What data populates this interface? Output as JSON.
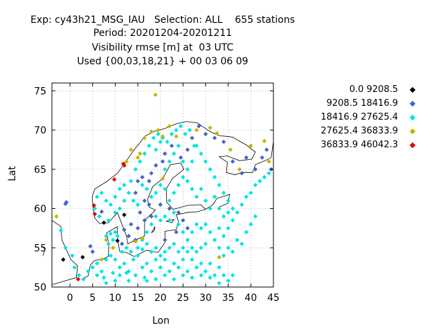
{
  "title": {
    "lines": [
      "Exp: cy43h21_MSG_IAU   Selection: ALL    655 stations",
      "Period: 20201204-20201211",
      "Visibility rmse [m] at  03 UTC",
      "Used {00,03,18,21} + 00 03 06 09"
    ]
  },
  "colors": {
    "bin0": "#000000",
    "bin1": "#4466cc",
    "bin2": "#00e5e5",
    "bin3": "#c8b400",
    "bin4": "#e60000",
    "grid": "#999999",
    "coast": "#000000"
  },
  "chart_data": {
    "type": "scatter",
    "title": "Exp: cy43h21_MSG_IAU   Selection: ALL    655 stations",
    "xlabel": "Lon",
    "ylabel": "Lat",
    "xlim": [
      -4,
      45
    ],
    "ylim": [
      50,
      76
    ],
    "xticks": [
      0,
      5,
      10,
      15,
      20,
      25,
      30,
      35,
      40,
      45
    ],
    "yticks": [
      50,
      55,
      60,
      65,
      70,
      75
    ],
    "grid": true,
    "legend_position": "right",
    "series": [
      {
        "name": "0.0 9208.5",
        "color": "#000000",
        "points": [
          [
            2.8,
            53.8
          ],
          [
            12.0,
            59.2
          ],
          [
            7.5,
            58.2
          ],
          [
            -1.5,
            53.5
          ],
          [
            10.5,
            55.9
          ]
        ]
      },
      {
        "name": "9208.5 18416.9",
        "color": "#4466cc",
        "points": [
          [
            -1.0,
            60.6
          ],
          [
            -0.8,
            60.8
          ],
          [
            4.5,
            55.2
          ],
          [
            5.0,
            54.5
          ],
          [
            7.0,
            59.6
          ],
          [
            12.0,
            57.3
          ],
          [
            15.0,
            63.5
          ],
          [
            16.0,
            64.0
          ],
          [
            17.5,
            63.5
          ],
          [
            18.0,
            64.5
          ],
          [
            19.0,
            65.5
          ],
          [
            20.5,
            66.0
          ],
          [
            21.0,
            67.0
          ],
          [
            14.5,
            62.0
          ],
          [
            16.5,
            61.0
          ],
          [
            17.5,
            60.5
          ],
          [
            15.5,
            59.5
          ],
          [
            18.0,
            59.0
          ],
          [
            13.5,
            58.0
          ],
          [
            15.0,
            57.5
          ],
          [
            16.5,
            58.5
          ],
          [
            22.5,
            68.0
          ],
          [
            24.5,
            66.5
          ],
          [
            26.0,
            67.5
          ],
          [
            27.0,
            69.0
          ],
          [
            28.5,
            70.5
          ],
          [
            30.0,
            69.5
          ],
          [
            32.0,
            69.0
          ],
          [
            34.0,
            68.5
          ],
          [
            36.0,
            66.0
          ],
          [
            38.0,
            64.5
          ],
          [
            39.0,
            66.5
          ],
          [
            41.0,
            65.0
          ],
          [
            42.5,
            66.5
          ],
          [
            43.5,
            67.5
          ],
          [
            44.5,
            65.0
          ],
          [
            20.0,
            60.5
          ],
          [
            22.0,
            60.0
          ],
          [
            24.0,
            59.5
          ],
          [
            25.0,
            58.5
          ],
          [
            26.0,
            57.5
          ],
          [
            23.5,
            57.0
          ],
          [
            21.0,
            56.0
          ],
          [
            13.0,
            56.5
          ],
          [
            14.5,
            56.0
          ],
          [
            11.5,
            55.5
          ]
        ]
      },
      {
        "name": "18416.9 27625.4",
        "color": "#00e5e5",
        "points": [
          [
            -2.0,
            57.2
          ],
          [
            -1.0,
            55.0
          ],
          [
            0.5,
            54.0
          ],
          [
            1.0,
            52.5
          ],
          [
            2.0,
            51.5
          ],
          [
            3.0,
            51.0
          ],
          [
            4.0,
            52.0
          ],
          [
            5.0,
            52.5
          ],
          [
            6.0,
            53.0
          ],
          [
            7.0,
            52.0
          ],
          [
            8.0,
            53.5
          ],
          [
            9.0,
            54.0
          ],
          [
            10.0,
            53.5
          ],
          [
            11.0,
            52.5
          ],
          [
            12.0,
            53.0
          ],
          [
            13.0,
            52.0
          ],
          [
            14.0,
            53.5
          ],
          [
            15.0,
            54.0
          ],
          [
            16.0,
            52.5
          ],
          [
            17.0,
            53.0
          ],
          [
            18.0,
            52.0
          ],
          [
            19.0,
            53.5
          ],
          [
            20.0,
            52.5
          ],
          [
            21.0,
            53.5
          ],
          [
            22.0,
            52.0
          ],
          [
            23.0,
            53.0
          ],
          [
            24.0,
            52.5
          ],
          [
            25.0,
            53.5
          ],
          [
            26.0,
            52.0
          ],
          [
            27.0,
            53.5
          ],
          [
            28.0,
            52.5
          ],
          [
            29.0,
            53.0
          ],
          [
            30.0,
            52.0
          ],
          [
            31.0,
            53.0
          ],
          [
            32.0,
            51.5
          ],
          [
            33.0,
            52.5
          ],
          [
            8.5,
            55.5
          ],
          [
            9.5,
            56.0
          ],
          [
            10.0,
            57.0
          ],
          [
            9.0,
            56.8
          ],
          [
            8.0,
            56.5
          ],
          [
            10.5,
            56.5
          ],
          [
            11.5,
            54.5
          ],
          [
            12.5,
            55.0
          ],
          [
            13.5,
            54.5
          ],
          [
            6.0,
            51.5
          ],
          [
            7.5,
            51.2
          ],
          [
            9.5,
            51.8
          ],
          [
            11.0,
            51.5
          ],
          [
            12.5,
            51.8
          ],
          [
            14.5,
            51.5
          ],
          [
            16.5,
            51.2
          ],
          [
            10.0,
            50.8
          ],
          [
            8.0,
            50.5
          ],
          [
            13.0,
            50.8
          ],
          [
            15.0,
            55.0
          ],
          [
            16.0,
            56.0
          ],
          [
            17.0,
            57.0
          ],
          [
            18.0,
            58.0
          ],
          [
            19.0,
            59.0
          ],
          [
            20.0,
            58.5
          ],
          [
            21.0,
            59.0
          ],
          [
            22.0,
            58.5
          ],
          [
            23.0,
            59.5
          ],
          [
            24.0,
            58.0
          ],
          [
            25.0,
            57.0
          ],
          [
            26.0,
            56.0
          ],
          [
            27.0,
            57.0
          ],
          [
            28.0,
            58.0
          ],
          [
            29.0,
            57.5
          ],
          [
            30.0,
            58.0
          ],
          [
            31.0,
            57.0
          ],
          [
            32.0,
            56.0
          ],
          [
            33.0,
            57.5
          ],
          [
            34.0,
            56.5
          ],
          [
            35.0,
            57.5
          ],
          [
            36.0,
            58.5
          ],
          [
            37.0,
            59.5
          ],
          [
            38.0,
            60.5
          ],
          [
            39.0,
            61.5
          ],
          [
            40.0,
            62.0
          ],
          [
            41.0,
            63.0
          ],
          [
            42.0,
            63.5
          ],
          [
            43.0,
            64.0
          ],
          [
            44.0,
            64.5
          ],
          [
            35.0,
            61.0
          ],
          [
            34.0,
            62.0
          ],
          [
            33.0,
            63.0
          ],
          [
            32.0,
            64.0
          ],
          [
            31.0,
            65.0
          ],
          [
            30.0,
            66.0
          ],
          [
            29.0,
            67.0
          ],
          [
            28.0,
            68.0
          ],
          [
            27.0,
            66.0
          ],
          [
            26.0,
            65.0
          ],
          [
            25.0,
            64.0
          ],
          [
            24.0,
            63.0
          ],
          [
            23.0,
            62.0
          ],
          [
            22.0,
            61.0
          ],
          [
            21.0,
            62.5
          ],
          [
            20.0,
            63.0
          ],
          [
            19.0,
            62.0
          ],
          [
            18.0,
            61.5
          ],
          [
            17.0,
            62.5
          ],
          [
            16.0,
            63.0
          ],
          [
            15.0,
            60.5
          ],
          [
            14.0,
            61.0
          ],
          [
            13.0,
            62.0
          ],
          [
            12.0,
            63.0
          ],
          [
            11.0,
            62.5
          ],
          [
            10.0,
            61.5
          ],
          [
            9.0,
            60.5
          ],
          [
            8.0,
            61.0
          ],
          [
            7.0,
            62.0
          ],
          [
            6.0,
            61.5
          ],
          [
            5.5,
            60.0
          ],
          [
            6.5,
            59.0
          ],
          [
            8.5,
            58.5
          ],
          [
            10.0,
            59.5
          ],
          [
            11.0,
            60.0
          ],
          [
            12.0,
            61.0
          ],
          [
            13.5,
            63.5
          ],
          [
            14.5,
            65.0
          ],
          [
            15.5,
            66.0
          ],
          [
            16.5,
            67.0
          ],
          [
            17.5,
            68.0
          ],
          [
            18.5,
            69.0
          ],
          [
            19.5,
            69.5
          ],
          [
            20.5,
            69.0
          ],
          [
            21.5,
            68.5
          ],
          [
            22.5,
            69.5
          ],
          [
            23.5,
            70.0
          ],
          [
            24.5,
            70.5
          ],
          [
            25.5,
            69.5
          ],
          [
            26.5,
            70.0
          ],
          [
            27.5,
            68.0
          ],
          [
            19.0,
            67.5
          ],
          [
            20.0,
            68.5
          ],
          [
            21.0,
            65.0
          ],
          [
            22.0,
            66.0
          ],
          [
            23.0,
            67.0
          ],
          [
            24.0,
            68.0
          ],
          [
            25.0,
            66.0
          ],
          [
            26.0,
            63.5
          ],
          [
            27.0,
            62.5
          ],
          [
            28.0,
            61.5
          ],
          [
            29.0,
            62.5
          ],
          [
            30.0,
            61.0
          ],
          [
            31.0,
            60.0
          ],
          [
            32.0,
            61.5
          ],
          [
            33.0,
            60.0
          ],
          [
            34.0,
            59.0
          ],
          [
            35.0,
            59.5
          ],
          [
            36.0,
            60.0
          ],
          [
            37.0,
            56.0
          ],
          [
            38.0,
            55.5
          ],
          [
            39.0,
            57.0
          ],
          [
            40.0,
            58.0
          ],
          [
            41.0,
            59.0
          ],
          [
            36.0,
            54.5
          ],
          [
            35.0,
            55.0
          ],
          [
            34.0,
            54.0
          ],
          [
            33.0,
            55.0
          ],
          [
            30.0,
            55.5
          ],
          [
            29.0,
            55.0
          ],
          [
            28.0,
            54.5
          ],
          [
            27.0,
            55.0
          ],
          [
            26.0,
            54.5
          ],
          [
            25.0,
            55.0
          ],
          [
            24.0,
            54.5
          ],
          [
            23.0,
            55.5
          ],
          [
            22.0,
            55.0
          ],
          [
            21.0,
            54.5
          ],
          [
            20.0,
            54.0
          ],
          [
            19.0,
            55.0
          ],
          [
            18.0,
            54.5
          ],
          [
            17.0,
            55.5
          ],
          [
            16.0,
            54.8
          ],
          [
            33.0,
            50.5
          ],
          [
            34.0,
            51.5
          ],
          [
            35.0,
            50.8
          ],
          [
            36.0,
            51.5
          ],
          [
            31.0,
            51.2
          ],
          [
            29.0,
            51.5
          ],
          [
            27.0,
            51.2
          ],
          [
            25.0,
            51.5
          ],
          [
            23.0,
            51.0
          ],
          [
            21.0,
            51.5
          ],
          [
            19.0,
            51.0
          ],
          [
            17.0,
            50.8
          ]
        ]
      },
      {
        "name": "27625.4 36833.9",
        "color": "#c8b400",
        "points": [
          [
            18.9,
            74.5
          ],
          [
            -3.0,
            59.0
          ],
          [
            8.0,
            56.0
          ],
          [
            9.5,
            55.0
          ],
          [
            14.5,
            55.8
          ],
          [
            16.0,
            56.2
          ],
          [
            16.5,
            69.0
          ],
          [
            18.0,
            69.8
          ],
          [
            19.5,
            70.0
          ],
          [
            20.5,
            69.2
          ],
          [
            22.0,
            70.5
          ],
          [
            23.5,
            69.2
          ],
          [
            28.0,
            70.0
          ],
          [
            31.0,
            70.3
          ],
          [
            32.5,
            69.6
          ],
          [
            35.5,
            67.5
          ],
          [
            37.5,
            65.0
          ],
          [
            40.0,
            68.0
          ],
          [
            43.0,
            68.6
          ],
          [
            44.0,
            66.0
          ],
          [
            15.0,
            66.5
          ],
          [
            12.5,
            66.0
          ],
          [
            13.5,
            67.5
          ],
          [
            15.5,
            67.0
          ],
          [
            20.5,
            63.8
          ],
          [
            33.0,
            53.8
          ],
          [
            7.0,
            53.5
          ]
        ]
      },
      {
        "name": "36833.9 46042.3",
        "color": "#e60000",
        "points": [
          [
            1.8,
            51.0
          ],
          [
            5.3,
            60.4
          ],
          [
            5.5,
            59.3
          ],
          [
            9.8,
            63.7
          ],
          [
            12.0,
            65.5
          ],
          [
            11.8,
            65.7
          ]
        ]
      }
    ]
  },
  "legend": {
    "items": [
      {
        "label": "0.0 9208.5"
      },
      {
        "label": "9208.5 18416.9"
      },
      {
        "label": "18416.9 27625.4"
      },
      {
        "label": "27625.4 36833.9"
      },
      {
        "label": "36833.9 46042.3"
      }
    ]
  }
}
